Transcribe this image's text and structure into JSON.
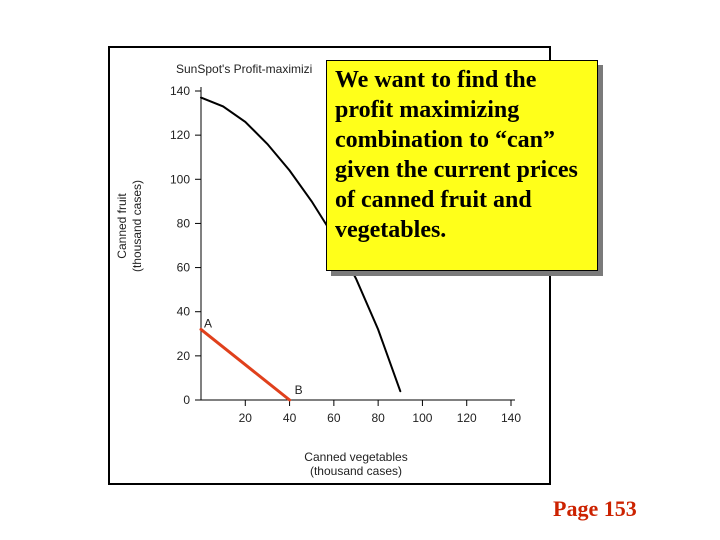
{
  "chart_data": {
    "type": "line",
    "title": "SunSpot's Profit-maximizi",
    "xlabel": "Canned vegetables\n(thousand cases)",
    "ylabel": "Canned fruit\n(thousand cases)",
    "xlim": [
      0,
      140
    ],
    "ylim": [
      0,
      140
    ],
    "xticks": [
      20,
      40,
      60,
      80,
      100,
      120,
      140
    ],
    "yticks": [
      0,
      20,
      40,
      60,
      80,
      100,
      120,
      140
    ],
    "grid": false,
    "series": [
      {
        "role": "production possibilities frontier",
        "color": "#000000",
        "points": [
          [
            0,
            137
          ],
          [
            10,
            133
          ],
          [
            20,
            126
          ],
          [
            30,
            116
          ],
          [
            40,
            104
          ],
          [
            50,
            90
          ],
          [
            60,
            74
          ],
          [
            70,
            55
          ],
          [
            80,
            32
          ],
          [
            90,
            4
          ]
        ]
      },
      {
        "role": "line from A to B",
        "color": "#e0401c",
        "points": [
          [
            0,
            32
          ],
          [
            40,
            0
          ]
        ]
      }
    ],
    "annotations": [
      {
        "label": "A",
        "x": 0,
        "y": 32
      },
      {
        "label": "B",
        "x": 40,
        "y": 0
      }
    ]
  },
  "callout": {
    "text": "We want to find the profit maximizing combination to “can” given the current prices of canned fruit and vegetables."
  },
  "page_label": "Page 153"
}
